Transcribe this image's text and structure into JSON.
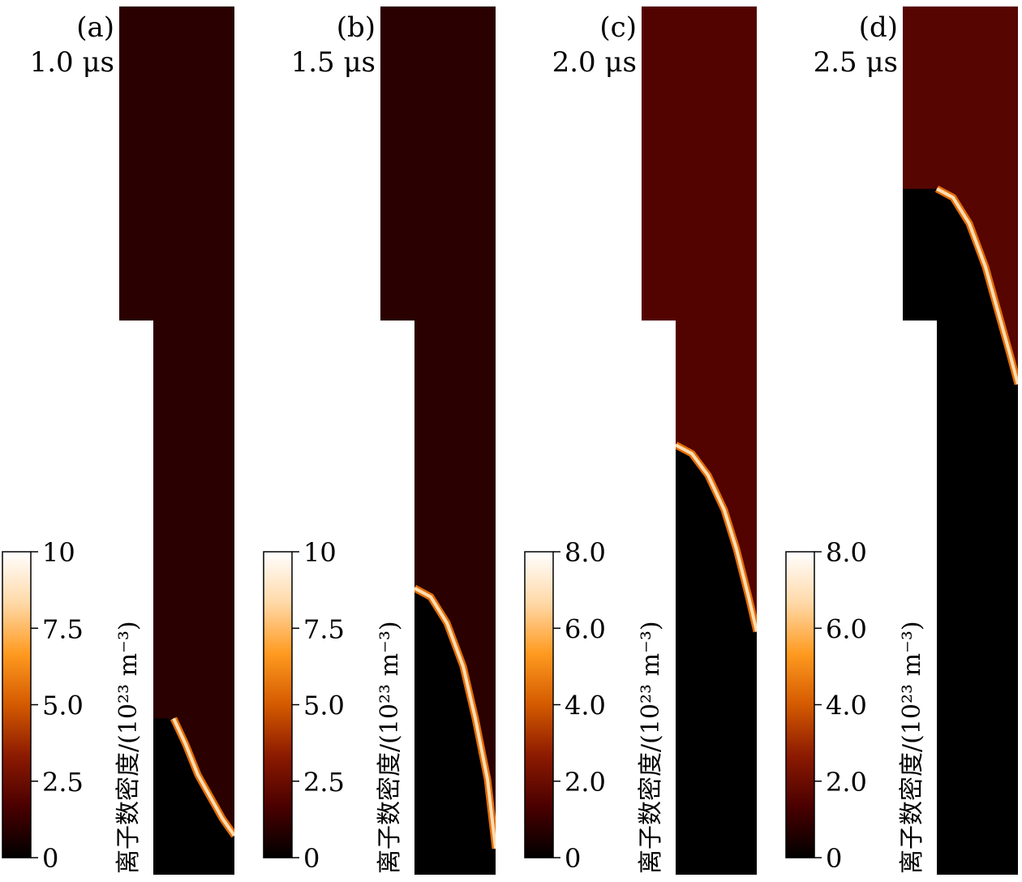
{
  "chart_data": [
    {
      "type": "heatmap",
      "panel_label": "(a)",
      "time_label": "1.0 μs",
      "colorbar": {
        "label": "离子数密度/(10²³ m⁻³)",
        "range": [
          0,
          10
        ],
        "ticks": [
          0,
          2.5,
          5.0,
          7.5,
          10
        ],
        "tick_labels": [
          "0",
          "2.5",
          "5.0",
          "7.5",
          "10"
        ],
        "colormap": [
          "#000000",
          "#4a0000",
          "#8c1a00",
          "#d45a00",
          "#ff9a20",
          "#ffd9a8",
          "#ffffff"
        ]
      },
      "background_level": 0.95,
      "front_top": 0.82,
      "front_profile": [
        [
          0.25,
          0.82
        ],
        [
          0.4,
          0.85
        ],
        [
          0.55,
          0.885
        ],
        [
          0.7,
          0.91
        ],
        [
          0.85,
          0.935
        ],
        [
          1.0,
          0.955
        ]
      ]
    },
    {
      "type": "heatmap",
      "panel_label": "(b)",
      "time_label": "1.5 μs",
      "colorbar": {
        "label": "离子数密度/(10²³ m⁻³)",
        "range": [
          0,
          10
        ],
        "ticks": [
          0,
          2.5,
          5.0,
          7.5,
          10
        ],
        "tick_labels": [
          "0",
          "2.5",
          "5.0",
          "7.5",
          "10"
        ],
        "colormap": [
          "#000000",
          "#4a0000",
          "#8c1a00",
          "#d45a00",
          "#ff9a20",
          "#ffd9a8",
          "#ffffff"
        ]
      },
      "background_level": 0.95,
      "front_top": 0.67,
      "front_profile": [
        [
          0.0,
          0.67
        ],
        [
          0.2,
          0.68
        ],
        [
          0.4,
          0.71
        ],
        [
          0.6,
          0.76
        ],
        [
          0.75,
          0.82
        ],
        [
          0.9,
          0.89
        ],
        [
          1.0,
          0.97
        ]
      ]
    },
    {
      "type": "heatmap",
      "panel_label": "(c)",
      "time_label": "2.0 μs",
      "colorbar": {
        "label": "离子数密度/(10²³ m⁻³)",
        "range": [
          0,
          8
        ],
        "ticks": [
          0,
          2.0,
          4.0,
          6.0,
          8.0
        ],
        "tick_labels": [
          "0",
          "2.0",
          "4.0",
          "6.0",
          "8.0"
        ],
        "colormap": [
          "#000000",
          "#4a0000",
          "#8c1a00",
          "#d45a00",
          "#ff9a20",
          "#ffd9a8",
          "#ffffff"
        ]
      },
      "background_level": 1.5,
      "front_top": 0.505,
      "front_profile": [
        [
          0.0,
          0.505
        ],
        [
          0.2,
          0.515
        ],
        [
          0.4,
          0.54
        ],
        [
          0.6,
          0.58
        ],
        [
          0.75,
          0.625
        ],
        [
          0.9,
          0.68
        ],
        [
          1.0,
          0.72
        ]
      ]
    },
    {
      "type": "heatmap",
      "panel_label": "(d)",
      "time_label": "2.5 μs",
      "colorbar": {
        "label": "离子数密度/(10²³ m⁻³)",
        "range": [
          0,
          8
        ],
        "ticks": [
          0,
          2.0,
          4.0,
          6.0,
          8.0
        ],
        "tick_labels": [
          "0",
          "2.0",
          "4.0",
          "6.0",
          "8.0"
        ],
        "colormap": [
          "#000000",
          "#4a0000",
          "#8c1a00",
          "#d45a00",
          "#ff9a20",
          "#ffd9a8",
          "#ffffff"
        ]
      },
      "background_level": 1.6,
      "front_top": 0.21,
      "front_profile": [
        [
          0.0,
          0.21
        ],
        [
          0.2,
          0.22
        ],
        [
          0.4,
          0.25
        ],
        [
          0.6,
          0.3
        ],
        [
          0.75,
          0.35
        ],
        [
          0.9,
          0.4
        ],
        [
          1.0,
          0.435
        ]
      ]
    }
  ]
}
